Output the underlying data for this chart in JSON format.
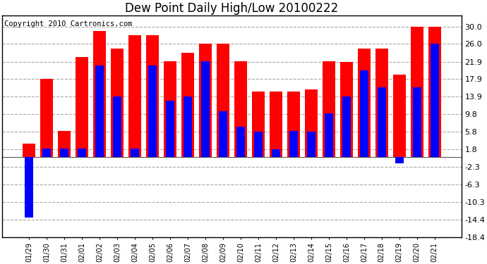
{
  "title": "Dew Point Daily High/Low 20100222",
  "copyright": "Copyright 2010 Cartronics.com",
  "dates": [
    "01/29",
    "01/30",
    "01/31",
    "02/01",
    "02/02",
    "02/03",
    "02/04",
    "02/05",
    "02/06",
    "02/07",
    "02/08",
    "02/09",
    "02/10",
    "02/11",
    "02/12",
    "02/13",
    "02/14",
    "02/15",
    "02/16",
    "02/17",
    "02/18",
    "02/19",
    "02/20",
    "02/21"
  ],
  "highs": [
    3.0,
    17.9,
    6.0,
    23.0,
    29.0,
    25.0,
    28.0,
    28.0,
    22.0,
    24.0,
    26.0,
    26.0,
    22.0,
    15.0,
    15.0,
    15.0,
    15.5,
    22.0,
    21.9,
    25.0,
    25.0,
    19.0,
    30.0,
    30.0
  ],
  "lows": [
    -14.0,
    2.0,
    2.0,
    2.0,
    21.0,
    14.0,
    2.0,
    21.0,
    13.0,
    14.0,
    22.0,
    10.5,
    7.0,
    5.8,
    1.8,
    6.0,
    5.8,
    10.0,
    13.9,
    20.0,
    16.0,
    -1.5,
    16.0,
    26.0
  ],
  "yticks": [
    30.0,
    26.0,
    21.9,
    17.9,
    13.9,
    9.8,
    5.8,
    1.8,
    -2.3,
    -6.3,
    -10.3,
    -14.4,
    -18.4
  ],
  "ymin": -18.4,
  "ymax": 32.5,
  "high_color": "#FF0000",
  "low_color": "#0000FF",
  "bg_color": "#FFFFFF",
  "grid_color": "#AAAAAA",
  "title_fontsize": 12,
  "copyright_fontsize": 7.5
}
